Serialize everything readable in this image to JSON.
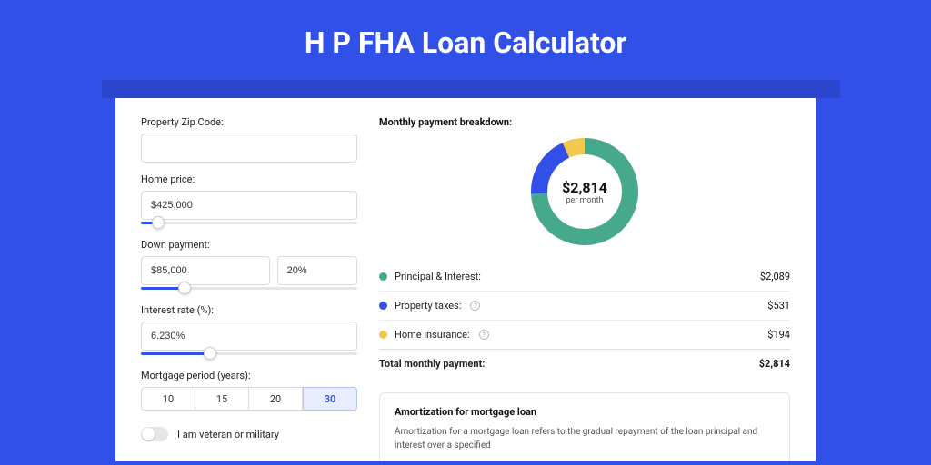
{
  "page": {
    "title": "H P FHA Loan Calculator",
    "background_color": "#3050e8",
    "shadow_color": "#2a46cc"
  },
  "form": {
    "zip": {
      "label": "Property Zip Code:",
      "value": ""
    },
    "home_price": {
      "label": "Home price:",
      "value": "$425,000",
      "slider_pct": 8
    },
    "down_payment": {
      "label": "Down payment:",
      "amount": "$85,000",
      "pct": "20%",
      "slider_pct": 20
    },
    "interest": {
      "label": "Interest rate (%):",
      "value": "6.230%",
      "slider_pct": 32
    },
    "period": {
      "label": "Mortgage period (years):",
      "options": [
        "10",
        "15",
        "20",
        "30"
      ],
      "active_index": 3
    },
    "veteran": {
      "label": "I am veteran or military",
      "on": false
    }
  },
  "breakdown": {
    "title": "Monthly payment breakdown:",
    "donut": {
      "amount": "$2,814",
      "sub": "per month",
      "slices": [
        {
          "key": "pi",
          "pct": 74.2,
          "color": "#46a98b"
        },
        {
          "key": "tax",
          "pct": 18.9,
          "color": "#3050e8"
        },
        {
          "key": "ins",
          "pct": 6.9,
          "color": "#f2c94c"
        }
      ],
      "stroke_width": 18
    },
    "rows": [
      {
        "dot": "#46a98b",
        "label": "Principal & Interest:",
        "info": false,
        "value": "$2,089"
      },
      {
        "dot": "#3050e8",
        "label": "Property taxes:",
        "info": true,
        "value": "$531"
      },
      {
        "dot": "#f2c94c",
        "label": "Home insurance:",
        "info": true,
        "value": "$194"
      }
    ],
    "total": {
      "label": "Total monthly payment:",
      "value": "$2,814"
    }
  },
  "amort": {
    "title": "Amortization for mortgage loan",
    "body": "Amortization for a mortgage loan refers to the gradual repayment of the loan principal and interest over a specified"
  }
}
